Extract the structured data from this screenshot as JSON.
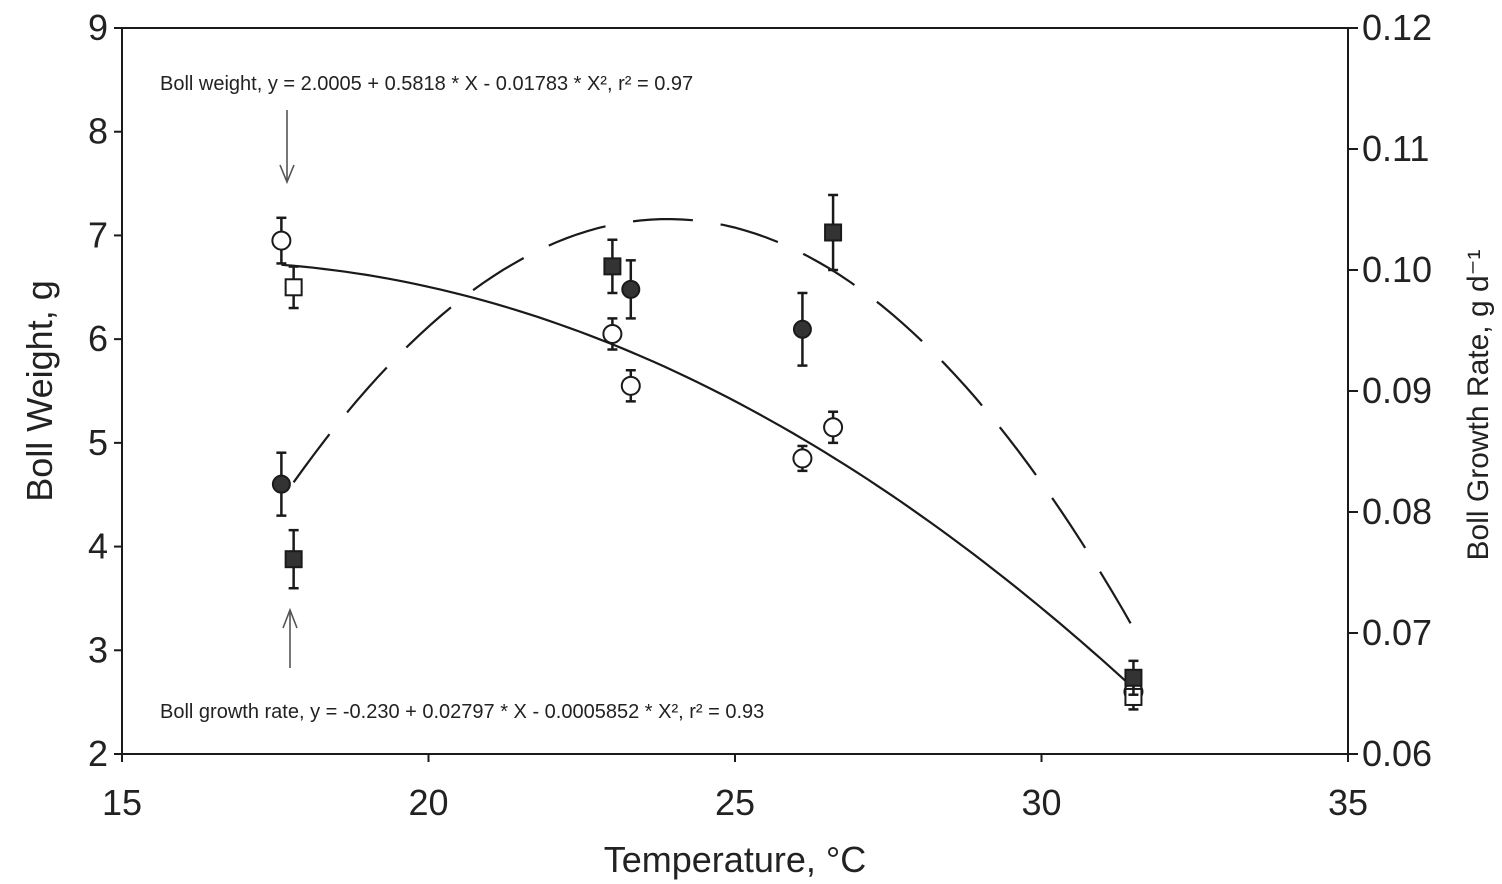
{
  "chart_data": {
    "type": "scatter",
    "xlabel": "Temperature, °C",
    "ylabel_left": "Boll Weight, g",
    "ylabel_right": "Boll Growth Rate, g d⁻¹",
    "xlim": [
      15,
      35
    ],
    "ylim_left": [
      2,
      9
    ],
    "ylim_right": [
      0.06,
      0.12
    ],
    "x_ticks": [
      "15",
      "20",
      "25",
      "30",
      "35"
    ],
    "y_ticks_left": [
      "2",
      "3",
      "4",
      "5",
      "6",
      "7",
      "8",
      "9"
    ],
    "y_ticks_right": [
      "0.06",
      "0.07",
      "0.08",
      "0.09",
      "0.10",
      "0.11",
      "0.12"
    ],
    "grid": false,
    "annotations": {
      "boll_weight_equation": "Boll weight, y = 2.0005 + 0.5818 * X - 0.01783 * X², r² = 0.97",
      "boll_growth_equation": "Boll growth rate, y = -0.230 + 0.02797 * X - 0.0005852 * X², r² = 0.93"
    },
    "series": [
      {
        "marker": "open-circle",
        "axis": "left",
        "points": [
          {
            "x": 17.6,
            "y": 6.95,
            "err": 0.22
          },
          {
            "x": 23.0,
            "y": 6.05,
            "err": 0.15
          },
          {
            "x": 23.3,
            "y": 5.55,
            "err": 0.15
          },
          {
            "x": 26.1,
            "y": 4.85,
            "err": 0.12
          },
          {
            "x": 26.6,
            "y": 5.15,
            "err": 0.15
          },
          {
            "x": 31.5,
            "y": 2.6,
            "err": 0.12
          }
        ]
      },
      {
        "marker": "open-square",
        "axis": "left",
        "points": [
          {
            "x": 17.8,
            "y": 6.5,
            "err": 0.2
          },
          {
            "x": 31.5,
            "y": 2.55,
            "err": 0.12
          }
        ]
      },
      {
        "marker": "filled-circle",
        "axis": "right",
        "points": [
          {
            "x": 17.6,
            "y": 0.0823,
            "err": 0.0026
          },
          {
            "x": 23.3,
            "y": 0.0984,
            "err": 0.0024
          },
          {
            "x": 26.1,
            "y": 0.0951,
            "err": 0.003
          }
        ]
      },
      {
        "marker": "filled-square",
        "axis": "right",
        "points": [
          {
            "x": 17.8,
            "y": 0.0761,
            "err": 0.0024
          },
          {
            "x": 23.0,
            "y": 0.1003,
            "err": 0.0022
          },
          {
            "x": 26.6,
            "y": 0.1031,
            "err": 0.0031
          },
          {
            "x": 31.5,
            "y": 0.0663,
            "err": 0.0014
          }
        ]
      },
      {
        "type": "fit-line",
        "style": "solid",
        "axis": "left",
        "equation": {
          "a": 2.0005,
          "b": 0.5818,
          "c": -0.01783
        },
        "x_range": [
          17.6,
          31.5
        ]
      },
      {
        "type": "fit-line",
        "style": "dashed",
        "axis": "right",
        "equation": {
          "a": -0.23,
          "b": 0.02797,
          "c": -0.0005852
        },
        "x_range": [
          17.8,
          31.5
        ]
      }
    ]
  },
  "colors": {
    "ink": "#1a1a1a",
    "marker": "#333333",
    "background": "#ffffff"
  }
}
